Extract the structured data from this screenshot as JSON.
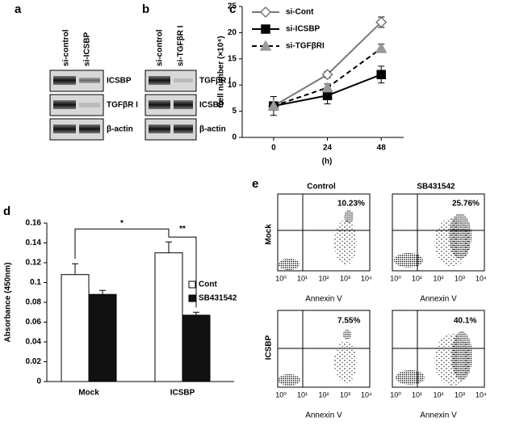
{
  "panels": {
    "a": {
      "label": "a",
      "lanes": [
        "si-control",
        "si-ICSBP"
      ],
      "bands": [
        "ICSBP",
        "TGFβR I",
        "β-actin"
      ]
    },
    "b": {
      "label": "b",
      "lanes": [
        "si-control",
        "si-TGFβR I"
      ],
      "bands": [
        "TGFβR I",
        "ICSBP",
        "β-actin"
      ]
    },
    "e": {
      "label": "e",
      "columns": [
        "Control",
        "SB431542"
      ],
      "rows": [
        "Mock",
        "ICSBP"
      ],
      "percentages": [
        "10.23%",
        "25.76%",
        "7.55%",
        "40.1%"
      ],
      "x_label": "Annexin V",
      "xticks": [
        "10⁰",
        "10¹",
        "10²",
        "10³",
        "10⁴"
      ]
    }
  },
  "chart_data": [
    {
      "type": "line",
      "panel": "c",
      "y_label": "Cell number (×10⁴)",
      "x_label": "(h)",
      "x": [
        0,
        24,
        48
      ],
      "xlim": [
        -14,
        58
      ],
      "xticks": [
        0,
        24,
        48
      ],
      "ylim": [
        0,
        25
      ],
      "yticks": [
        0,
        5,
        10,
        15,
        20,
        25
      ],
      "legend": "upper left",
      "series": [
        {
          "name": "si-Cont",
          "color": "#777777",
          "marker": "diamond",
          "linestyle": "solid",
          "values": [
            6,
            12,
            22
          ],
          "errors": [
            0.5,
            0.6,
            1.0
          ]
        },
        {
          "name": "si-ICSBP",
          "color": "#000000",
          "marker": "square",
          "linestyle": "solid",
          "values": [
            6,
            8,
            12
          ],
          "errors": [
            1.8,
            1.6,
            1.6
          ]
        },
        {
          "name": "si-TGFβRI",
          "color": "#999999",
          "marker": "triangle",
          "linestyle": "dashed",
          "values": [
            6,
            9.5,
            17
          ],
          "errors": [
            0.5,
            0.7,
            0.8
          ]
        }
      ]
    },
    {
      "type": "bar",
      "panel": "d",
      "y_label": "Absorbance (450nm)",
      "categories": [
        "Mock",
        "ICSBP"
      ],
      "ylim": [
        0,
        0.16
      ],
      "yticks": [
        0,
        0.02,
        0.04,
        0.06,
        0.08,
        0.1,
        0.12,
        0.14,
        0.16
      ],
      "legend": "right",
      "annotations": [
        "*",
        "**"
      ],
      "series": [
        {
          "name": "Cont",
          "color": "#ffffff",
          "values": [
            0.108,
            0.13
          ],
          "errors": [
            0.011,
            0.011
          ]
        },
        {
          "name": "SB431542",
          "color": "#111111",
          "values": [
            0.088,
            0.067
          ],
          "errors": [
            0.004,
            0.003
          ]
        }
      ]
    }
  ]
}
